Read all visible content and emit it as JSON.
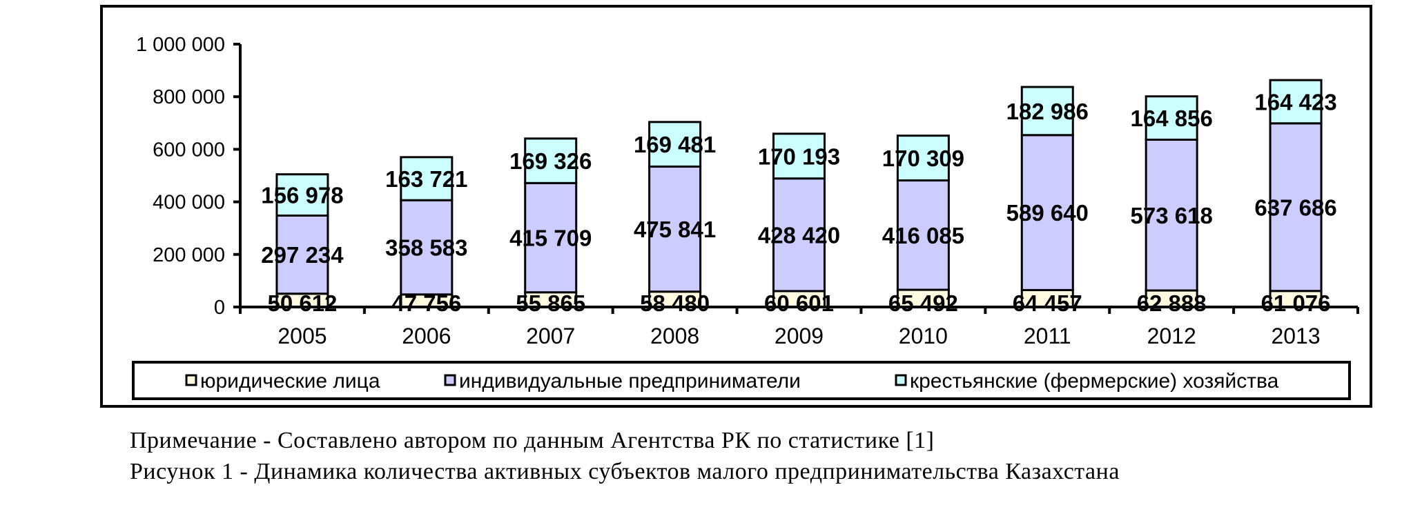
{
  "chart_data": {
    "type": "bar",
    "stacked": true,
    "categories": [
      "2005",
      "2006",
      "2007",
      "2008",
      "2009",
      "2010",
      "2011",
      "2012",
      "2013"
    ],
    "series": [
      {
        "name": "юридические лица",
        "color": "#fffae0",
        "values": [
          50612,
          47756,
          55865,
          58480,
          60601,
          65492,
          64457,
          62888,
          61076
        ],
        "labels": [
          "50 612",
          "47 756",
          "55 865",
          "58 480",
          "60 601",
          "65 492",
          "64 457",
          "62 888",
          "61 076"
        ]
      },
      {
        "name": "индивидуальные предприниматели",
        "color": "#ccccff",
        "values": [
          297234,
          358583,
          415709,
          475841,
          428420,
          416085,
          589640,
          573618,
          637686
        ],
        "labels": [
          "297 234",
          "358 583",
          "415 709",
          "475 841",
          "428 420",
          "416 085",
          "589 640",
          "573 618",
          "637 686"
        ]
      },
      {
        "name": "крестьянские (фермерские) хозяйства",
        "color": "#ccffff",
        "values": [
          156978,
          163721,
          169326,
          169481,
          170193,
          170309,
          182986,
          164856,
          164423
        ],
        "labels": [
          "156 978",
          "163 721",
          "169 326",
          "169 481",
          "170 193",
          "170 309",
          "182 986",
          "164 856",
          "164 423"
        ]
      }
    ],
    "ylim": [
      0,
      1000000
    ],
    "yticks": [
      0,
      200000,
      400000,
      600000,
      800000,
      1000000
    ],
    "ytick_labels": [
      "0",
      "200 000",
      "400 000",
      "600 000",
      "800 000",
      "1 000 000"
    ],
    "legend_position": "bottom",
    "grid": false
  },
  "captions": {
    "note": "Примечание - Составлено автором по данным Агентства РК по статистике [1]",
    "figure": "Рисунок 1 - Динамика количества активных субъектов малого предпринимательства Казахстана"
  }
}
